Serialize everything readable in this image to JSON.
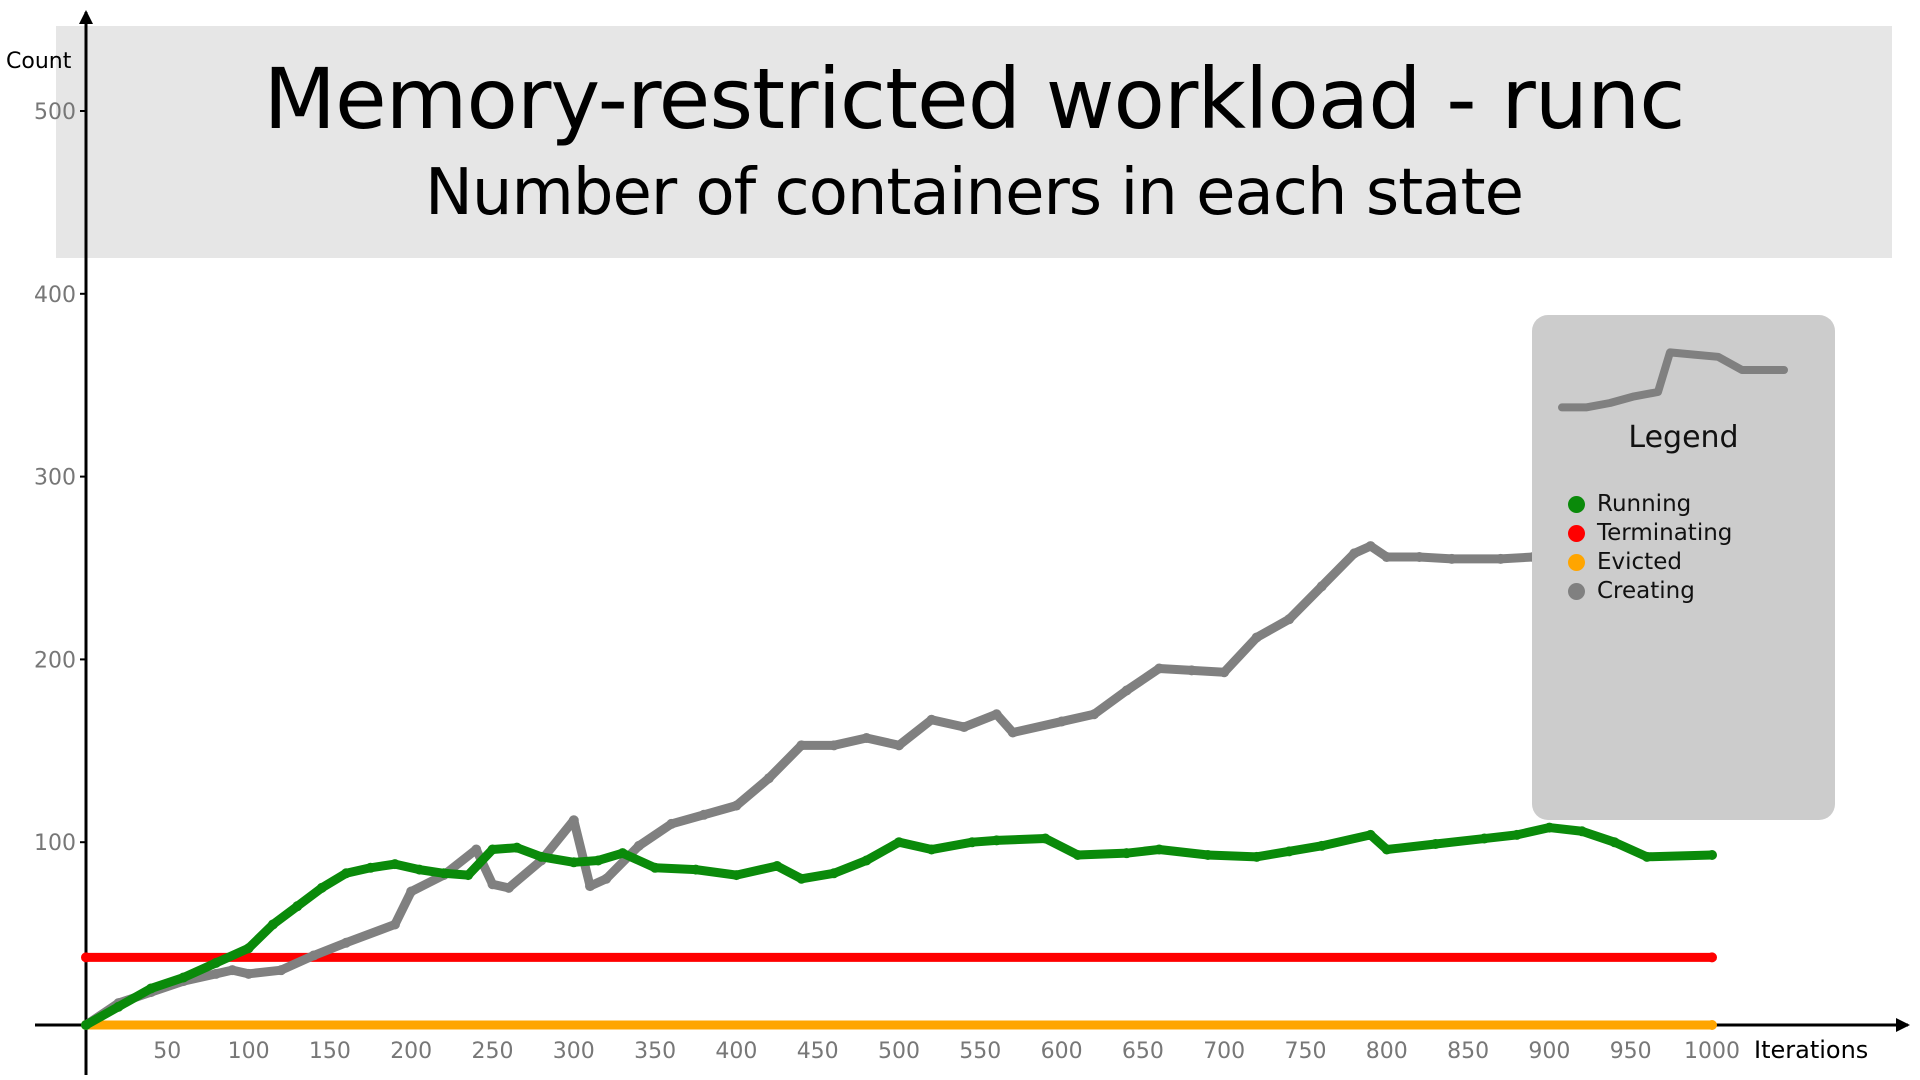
{
  "chart_data": {
    "type": "scatter",
    "title": "Memory-restricted workload - runc",
    "subtitle": "Number of containers in each state",
    "xlabel": "Iterations",
    "ylabel": "Count",
    "xlim": [
      0,
      1000
    ],
    "ylim": [
      0,
      500
    ],
    "x_ticks": [
      "50",
      "100",
      "150",
      "200",
      "250",
      "300",
      "350",
      "400",
      "450",
      "500",
      "550",
      "600",
      "650",
      "700",
      "750",
      "800",
      "850",
      "900",
      "950",
      "1000"
    ],
    "y_ticks": [
      "100",
      "200",
      "300",
      "400",
      "500"
    ],
    "grid": false,
    "legend_position": "right",
    "legend": {
      "title": "Legend",
      "entries": [
        {
          "label": "Running",
          "color": "#0a8a0a"
        },
        {
          "label": "Terminating",
          "color": "#ff0000"
        },
        {
          "label": "Evicted",
          "color": "#ffa500"
        },
        {
          "label": "Creating",
          "color": "#808080"
        }
      ]
    },
    "series": [
      {
        "name": "Running",
        "color": "#0a8a0a",
        "points": [
          [
            0,
            0
          ],
          [
            20,
            10
          ],
          [
            40,
            20
          ],
          [
            60,
            26
          ],
          [
            80,
            34
          ],
          [
            100,
            42
          ],
          [
            115,
            55
          ],
          [
            130,
            65
          ],
          [
            145,
            75
          ],
          [
            160,
            83
          ],
          [
            175,
            86
          ],
          [
            190,
            88
          ],
          [
            205,
            85
          ],
          [
            220,
            83
          ],
          [
            235,
            82
          ],
          [
            250,
            96
          ],
          [
            265,
            97
          ],
          [
            280,
            92
          ],
          [
            300,
            89
          ],
          [
            315,
            90
          ],
          [
            330,
            94
          ],
          [
            350,
            86
          ],
          [
            375,
            85
          ],
          [
            400,
            82
          ],
          [
            425,
            87
          ],
          [
            440,
            80
          ],
          [
            460,
            83
          ],
          [
            480,
            90
          ],
          [
            500,
            100
          ],
          [
            520,
            96
          ],
          [
            545,
            100
          ],
          [
            560,
            101
          ],
          [
            590,
            102
          ],
          [
            610,
            93
          ],
          [
            640,
            94
          ],
          [
            660,
            96
          ],
          [
            690,
            93
          ],
          [
            720,
            92
          ],
          [
            740,
            95
          ],
          [
            760,
            98
          ],
          [
            790,
            104
          ],
          [
            800,
            96
          ],
          [
            830,
            99
          ],
          [
            860,
            102
          ],
          [
            880,
            104
          ],
          [
            900,
            108
          ],
          [
            920,
            106
          ],
          [
            940,
            100
          ],
          [
            960,
            92
          ],
          [
            1000,
            93
          ]
        ]
      },
      {
        "name": "Terminating",
        "color": "#ff0000",
        "points": [
          [
            0,
            37
          ],
          [
            1000,
            37
          ]
        ]
      },
      {
        "name": "Evicted",
        "color": "#ffa500",
        "points": [
          [
            0,
            0
          ],
          [
            1000,
            0
          ]
        ]
      },
      {
        "name": "Creating",
        "color": "#808080",
        "points": [
          [
            0,
            0
          ],
          [
            20,
            12
          ],
          [
            40,
            18
          ],
          [
            60,
            24
          ],
          [
            80,
            28
          ],
          [
            90,
            30
          ],
          [
            100,
            28
          ],
          [
            120,
            30
          ],
          [
            140,
            38
          ],
          [
            160,
            45
          ],
          [
            190,
            55
          ],
          [
            200,
            73
          ],
          [
            220,
            82
          ],
          [
            240,
            96
          ],
          [
            250,
            77
          ],
          [
            260,
            75
          ],
          [
            280,
            90
          ],
          [
            300,
            112
          ],
          [
            310,
            76
          ],
          [
            320,
            80
          ],
          [
            340,
            98
          ],
          [
            360,
            110
          ],
          [
            380,
            115
          ],
          [
            400,
            120
          ],
          [
            420,
            135
          ],
          [
            440,
            153
          ],
          [
            460,
            153
          ],
          [
            480,
            157
          ],
          [
            500,
            153
          ],
          [
            520,
            167
          ],
          [
            540,
            163
          ],
          [
            560,
            170
          ],
          [
            570,
            160
          ],
          [
            600,
            166
          ],
          [
            620,
            170
          ],
          [
            640,
            183
          ],
          [
            660,
            195
          ],
          [
            680,
            194
          ],
          [
            700,
            193
          ],
          [
            720,
            212
          ],
          [
            740,
            222
          ],
          [
            760,
            240
          ],
          [
            780,
            258
          ],
          [
            790,
            262
          ],
          [
            800,
            256
          ],
          [
            820,
            256
          ],
          [
            840,
            255
          ],
          [
            870,
            255
          ],
          [
            890,
            256
          ],
          [
            910,
            260
          ],
          [
            1000,
            260
          ]
        ]
      }
    ],
    "legend_graphic": {
      "color": "#808080",
      "points": [
        [
          0,
          338
        ],
        [
          20,
          338
        ],
        [
          40,
          340
        ],
        [
          60,
          343
        ],
        [
          80,
          345
        ],
        [
          90,
          363
        ],
        [
          110,
          362
        ],
        [
          130,
          361
        ],
        [
          150,
          355
        ],
        [
          185,
          355
        ]
      ]
    }
  }
}
